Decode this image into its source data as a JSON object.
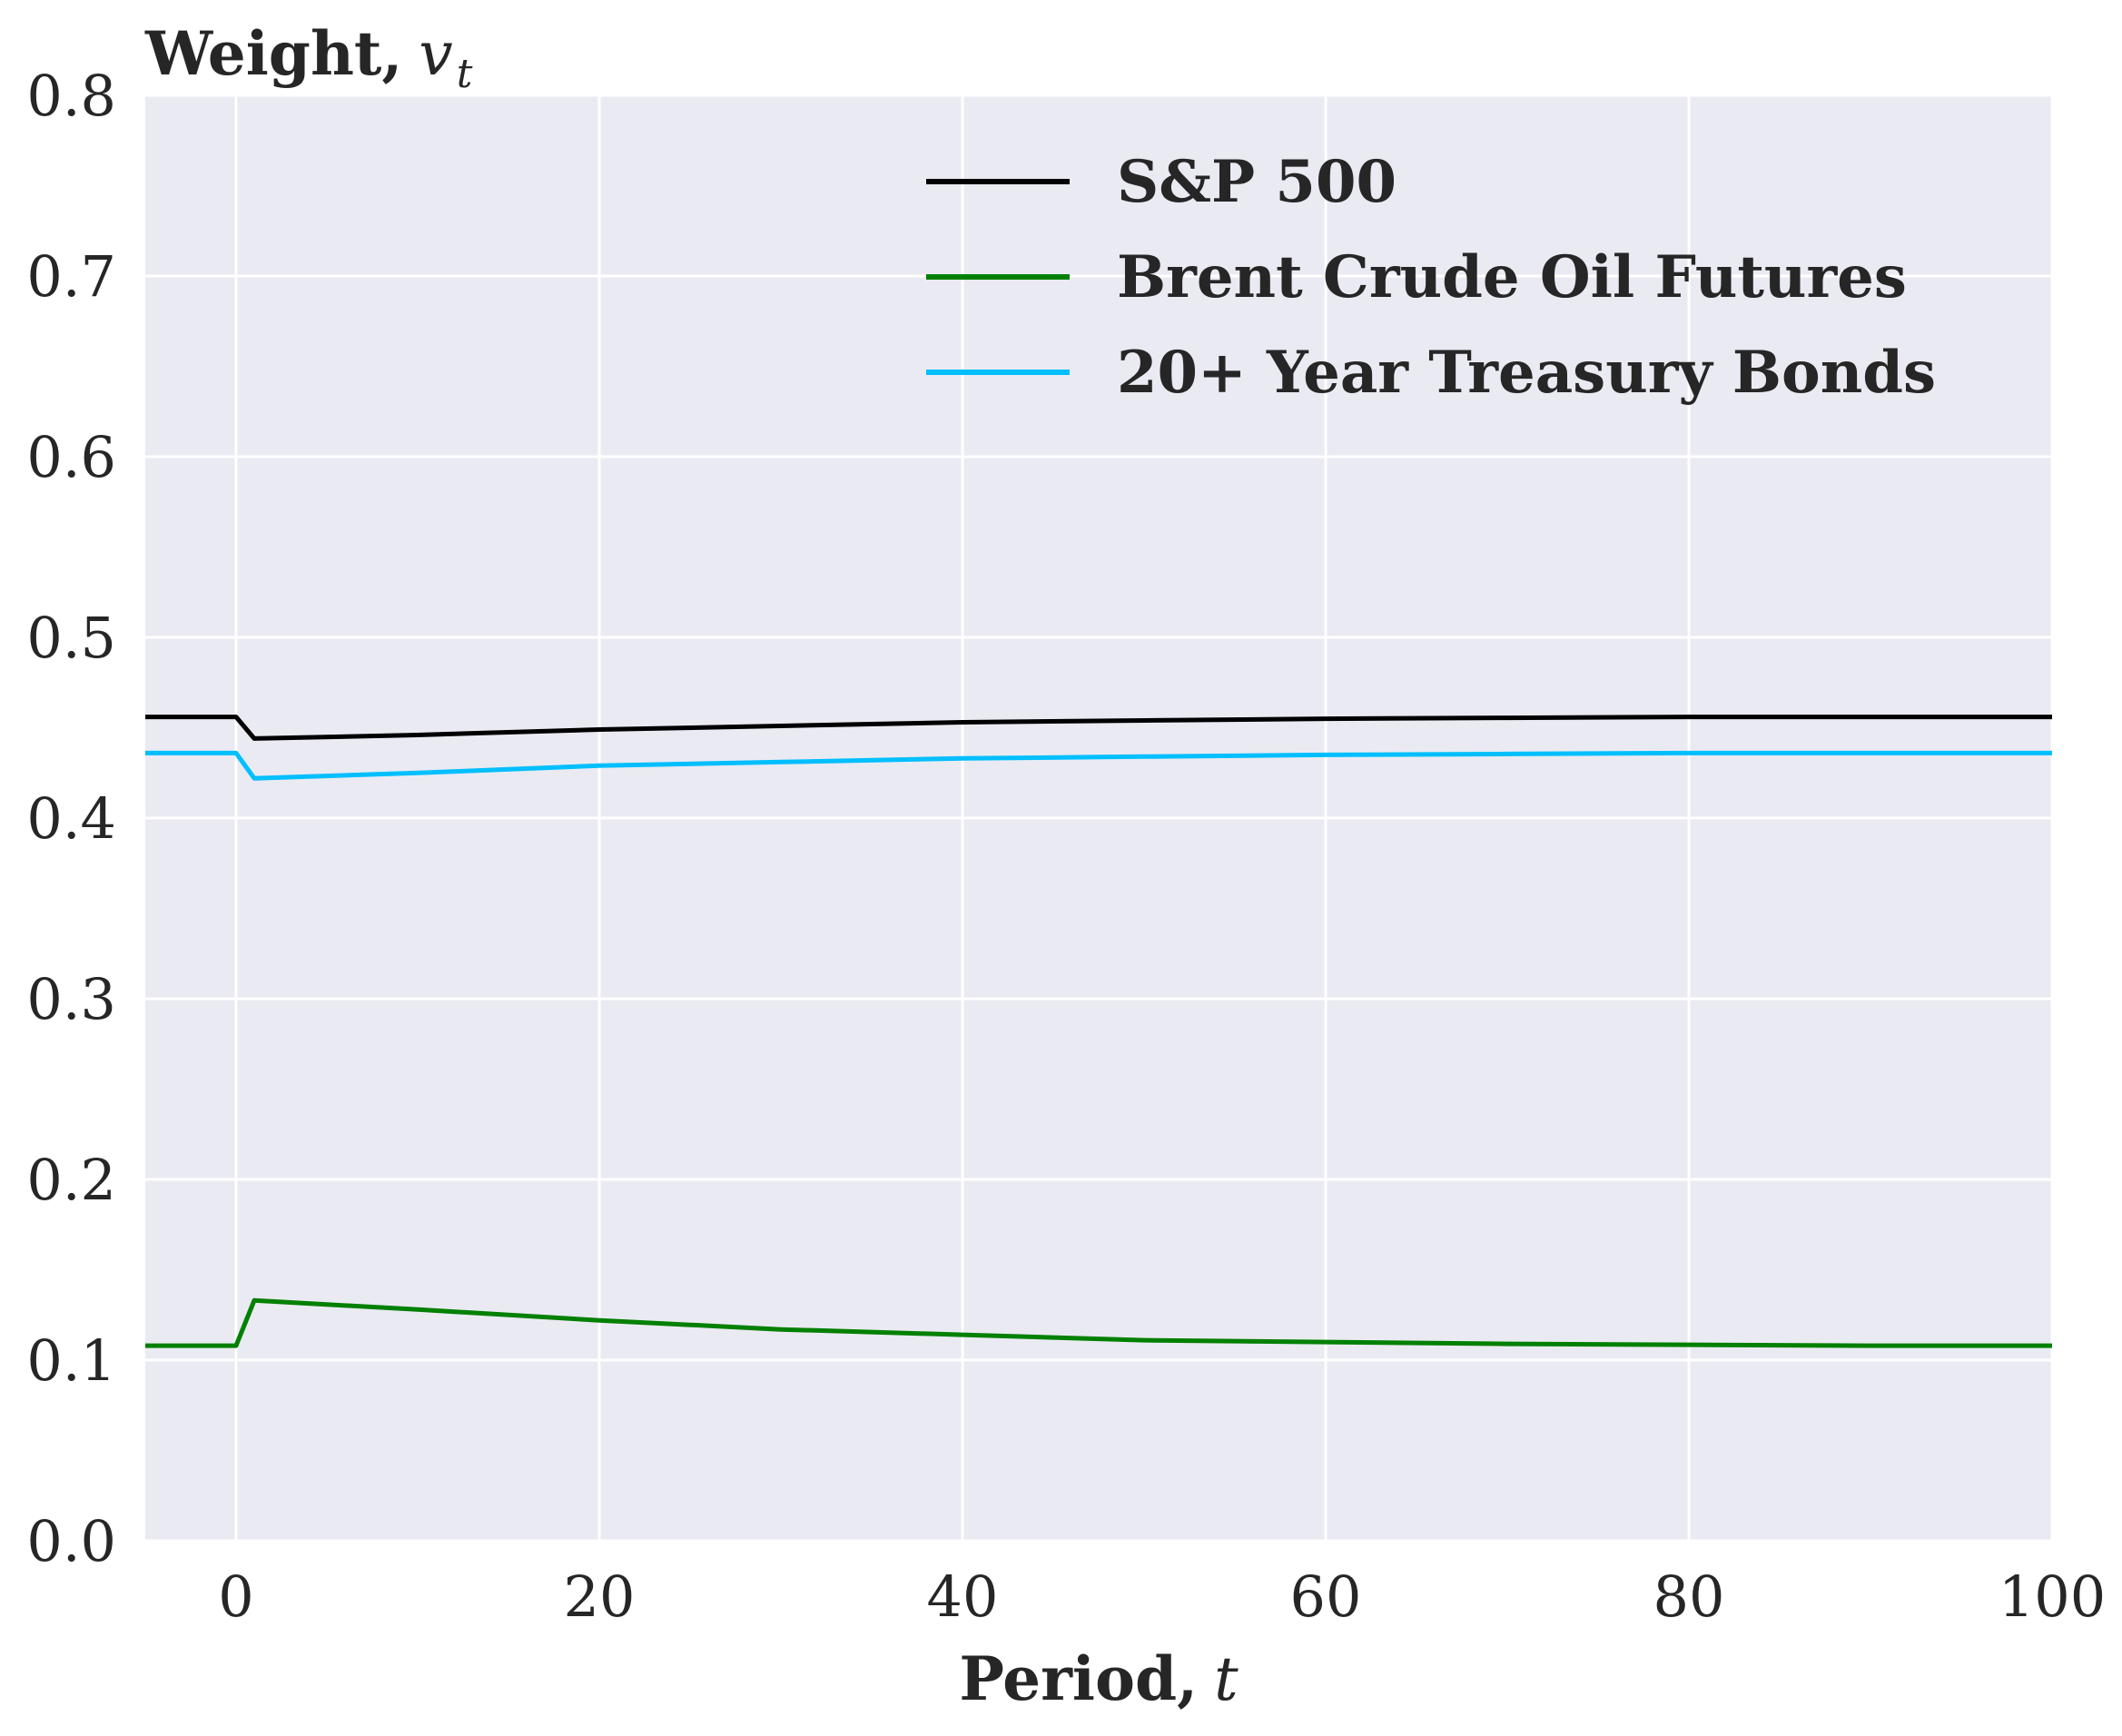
{
  "chart_data": {
    "type": "line",
    "xlabel": "Period,",
    "xlabel_var": "t",
    "ylabel": "Weight,",
    "ylabel_var": "v",
    "ylabel_sub": "t",
    "xlim": [
      -5,
      100
    ],
    "ylim": [
      0,
      0.8
    ],
    "xticks": [
      0,
      20,
      40,
      60,
      80,
      100
    ],
    "xtick_labels": [
      "0",
      "20",
      "40",
      "60",
      "80",
      "100"
    ],
    "yticks": [
      0.0,
      0.1,
      0.2,
      0.3,
      0.4,
      0.5,
      0.6,
      0.7,
      0.8
    ],
    "ytick_labels": [
      "0.0",
      "0.1",
      "0.2",
      "0.3",
      "0.4",
      "0.5",
      "0.6",
      "0.7",
      "0.8"
    ],
    "grid": true,
    "legend_position": "top-right",
    "background_color": "#eaeaf2",
    "grid_color": "#ffffff",
    "series": [
      {
        "name": "S&P 500",
        "color": "#000000",
        "x": [
          -5,
          0,
          1,
          10,
          20,
          30,
          40,
          50,
          60,
          70,
          80,
          90,
          100
        ],
        "y": [
          0.456,
          0.456,
          0.444,
          0.446,
          0.449,
          0.451,
          0.453,
          0.454,
          0.455,
          0.4555,
          0.456,
          0.456,
          0.456
        ]
      },
      {
        "name": "Brent Crude Oil Futures",
        "color": "#008000",
        "x": [
          -5,
          0,
          1,
          10,
          20,
          30,
          40,
          50,
          60,
          70,
          80,
          90,
          100
        ],
        "y": [
          0.108,
          0.108,
          0.133,
          0.128,
          0.122,
          0.117,
          0.114,
          0.111,
          0.11,
          0.109,
          0.1085,
          0.108,
          0.108
        ]
      },
      {
        "name": "20+ Year Treasury Bonds",
        "color": "#00bfff",
        "x": [
          -5,
          0,
          1,
          10,
          20,
          30,
          40,
          50,
          60,
          70,
          80,
          90,
          100
        ],
        "y": [
          0.436,
          0.436,
          0.422,
          0.425,
          0.429,
          0.431,
          0.433,
          0.434,
          0.435,
          0.4355,
          0.436,
          0.436,
          0.436
        ]
      }
    ]
  }
}
